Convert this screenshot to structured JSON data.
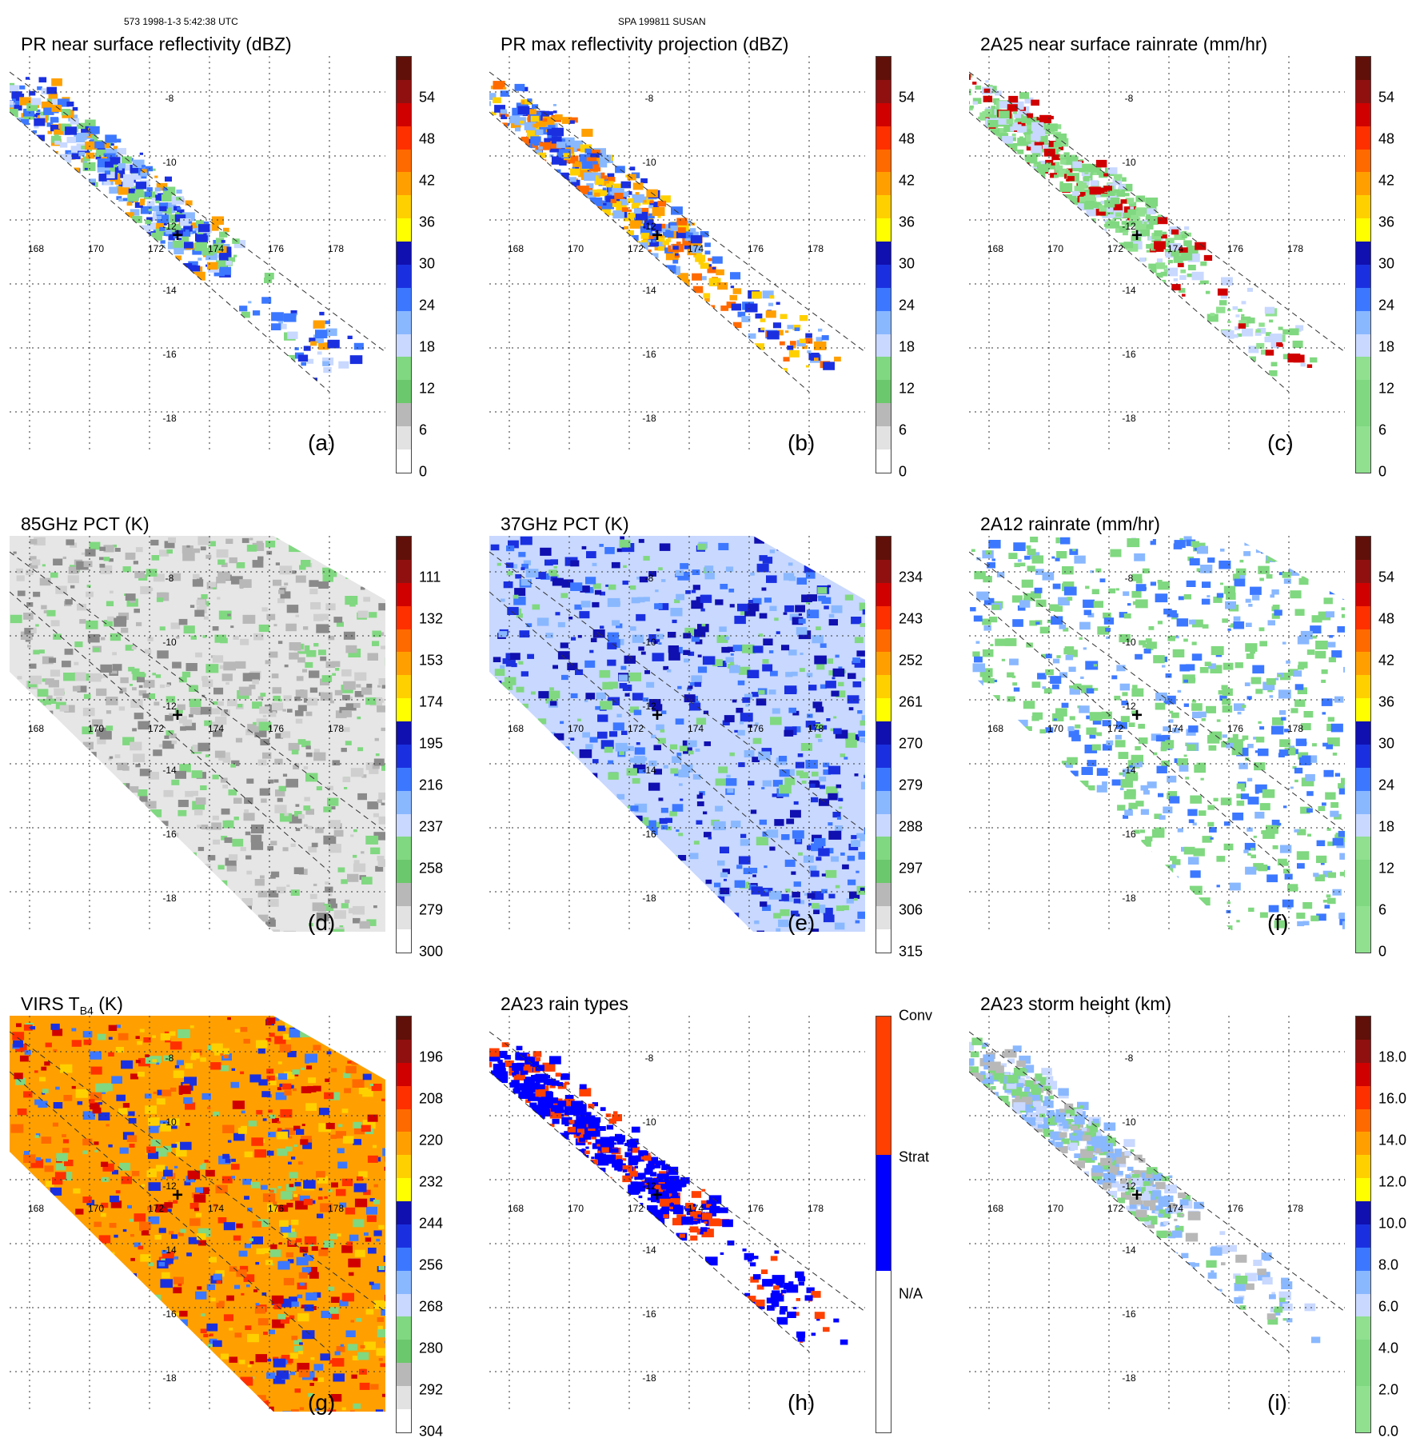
{
  "header": {
    "left": "573 1998-1-3 5:42:38 UTC",
    "center": "SPA 199811 SUSAN"
  },
  "lon_ticks": [
    "168",
    "170",
    "172",
    "174",
    "176",
    "178"
  ],
  "lat_ticks": [
    "-8",
    "-10",
    "-12",
    "-14",
    "-16",
    "-18"
  ],
  "palettes": {
    "rain": [
      "#ffffff",
      "#e2e2e2",
      "#b8b8b8",
      "#8fd88f",
      "#6cc86c",
      "#c8d8ff",
      "#8ab8ff",
      "#3c78ff",
      "#1a30e0",
      "#1010b0",
      "#ffff00",
      "#ffd000",
      "#ffa000",
      "#ff6a00",
      "#ff3000",
      "#d00000",
      "#901010",
      "#601008"
    ],
    "green_blue": [
      "#ffffff",
      "#90e090",
      "#80d880",
      "#c8d8ff",
      "#8ab8ff",
      "#3c78ff",
      "#1a30e0",
      "#1010b0",
      "#ffff00",
      "#ffa000",
      "#ff6a00",
      "#ff3000",
      "#d00000",
      "#901010",
      "#601008"
    ],
    "types": [
      "#ffffff",
      "#0000ff",
      "#ff4000"
    ]
  },
  "panels": [
    {
      "id": "a",
      "title": "PR near surface reflectivity (dBZ)",
      "letter": "(a)",
      "cbar": [
        "54",
        "48",
        "42",
        "36",
        "30",
        "24",
        "18",
        "12",
        "6",
        "0"
      ]
    },
    {
      "id": "b",
      "title": "PR max reflectivity projection (dBZ)",
      "letter": "(b)",
      "cbar": [
        "54",
        "48",
        "42",
        "36",
        "30",
        "24",
        "18",
        "12",
        "6",
        "0"
      ]
    },
    {
      "id": "c",
      "title": "2A25 near surface rainrate (mm/hr)",
      "letter": "(c)",
      "cbar": [
        "54",
        "48",
        "42",
        "36",
        "30",
        "24",
        "18",
        "12",
        "6",
        "0"
      ]
    },
    {
      "id": "d",
      "title": "85GHz PCT (K)",
      "letter": "(d)",
      "cbar": [
        "111",
        "132",
        "153",
        "174",
        "195",
        "216",
        "237",
        "258",
        "279",
        "300"
      ]
    },
    {
      "id": "e",
      "title": "37GHz PCT (K)",
      "letter": "(e)",
      "cbar": [
        "234",
        "243",
        "252",
        "261",
        "270",
        "279",
        "288",
        "297",
        "306",
        "315"
      ]
    },
    {
      "id": "f",
      "title": "2A12 rainrate (mm/hr)",
      "letter": "(f)",
      "cbar": [
        "54",
        "48",
        "42",
        "36",
        "30",
        "24",
        "18",
        "12",
        "6",
        "0"
      ]
    },
    {
      "id": "g",
      "title": "VIRS T",
      "title_sub": "B4",
      "title_end": " (K)",
      "letter": "(g)",
      "cbar": [
        "196",
        "208",
        "220",
        "232",
        "244",
        "256",
        "268",
        "280",
        "292",
        "304"
      ]
    },
    {
      "id": "h",
      "title": "2A23 rain types",
      "letter": "(h)",
      "cbar": [
        "Conv",
        "Strat",
        "N/A"
      ]
    },
    {
      "id": "i",
      "title": "2A23 storm height (km)",
      "letter": "(i)",
      "cbar": [
        "18.0",
        "16.0",
        "14.0",
        "12.0",
        "10.0",
        "8.0",
        "6.0",
        "4.0",
        "2.0",
        "0.0"
      ]
    }
  ]
}
